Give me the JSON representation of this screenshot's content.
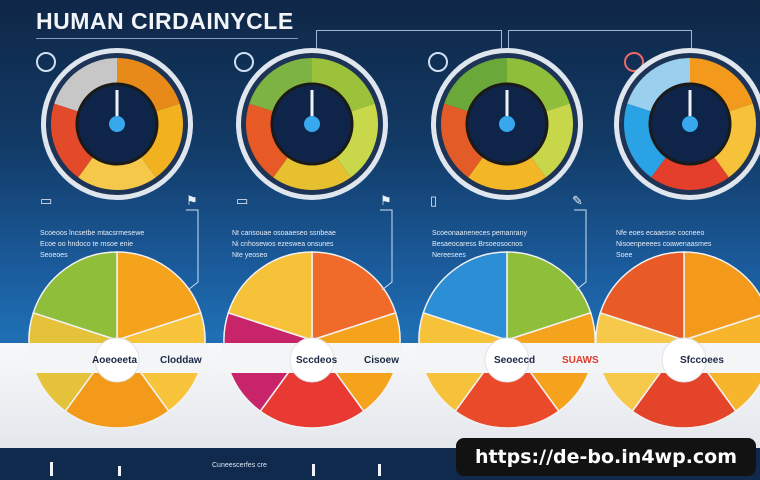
{
  "title": "HUMAN CIRDAINYCLE",
  "watermark": "https://de-bo.in4wp.com",
  "paragraphs": [
    "Scoeoos lncsetbe mtacsrmesewe\nEcoe oo hndoco te rnsoe enie\nSeoeoes",
    "Nt cansouae osoaaeseo ssnbeae\nNi cnhosewos ezeswea onsunes\nNte yeoseo",
    "Scoeonaaneneces pemanrany\nBesaeocaress Brsoeosocnos\nNereesees",
    "Nfe eoes ecaaesse cocneeo\nNisoenpeeees coawenaasmes\nSoee"
  ],
  "labels": [
    {
      "text": "Aoeoeeta",
      "style": "dark"
    },
    {
      "text": "Cloddaw",
      "style": "dark"
    },
    {
      "text": "Sccdeos",
      "style": "dark"
    },
    {
      "text": "Cisoew",
      "style": "dark"
    },
    {
      "text": "Seoeccd",
      "style": "dark"
    },
    {
      "text": "SUAWS",
      "style": "red"
    },
    {
      "text": "Sfccoees",
      "style": "dark"
    }
  ],
  "footer_text": "Cuneescerfes cre",
  "gauges": [
    {
      "segments": [
        "#e88a1a",
        "#f2b21f",
        "#f6c84a",
        "#e24a2a",
        "#c7c7c7"
      ]
    },
    {
      "segments": [
        "#9bc23a",
        "#c9d84a",
        "#e7c030",
        "#e85a25",
        "#7cb342"
      ]
    },
    {
      "segments": [
        "#8fbf3a",
        "#c8d74a",
        "#f3b626",
        "#e35b26",
        "#6aa83a"
      ]
    },
    {
      "segments": [
        "#f39a1c",
        "#f6c23a",
        "#e43f2a",
        "#2aa2e6",
        "#9ad0ee"
      ]
    }
  ],
  "pies": [
    {
      "segments": [
        "#f5a21c",
        "#f7c43b",
        "#f39a1a",
        "#e4c33a",
        "#8fbf3a"
      ]
    },
    {
      "segments": [
        "#f06a2a",
        "#f5a21c",
        "#e83a32",
        "#c8246a",
        "#f6c23a"
      ]
    },
    {
      "segments": [
        "#8fbf3a",
        "#f5a21c",
        "#e94a2a",
        "#f6c23a",
        "#2c8fd6"
      ]
    },
    {
      "segments": [
        "#f39a1a",
        "#f6b52c",
        "#e4442a",
        "#f7c94a",
        "#e85a26"
      ]
    }
  ]
}
